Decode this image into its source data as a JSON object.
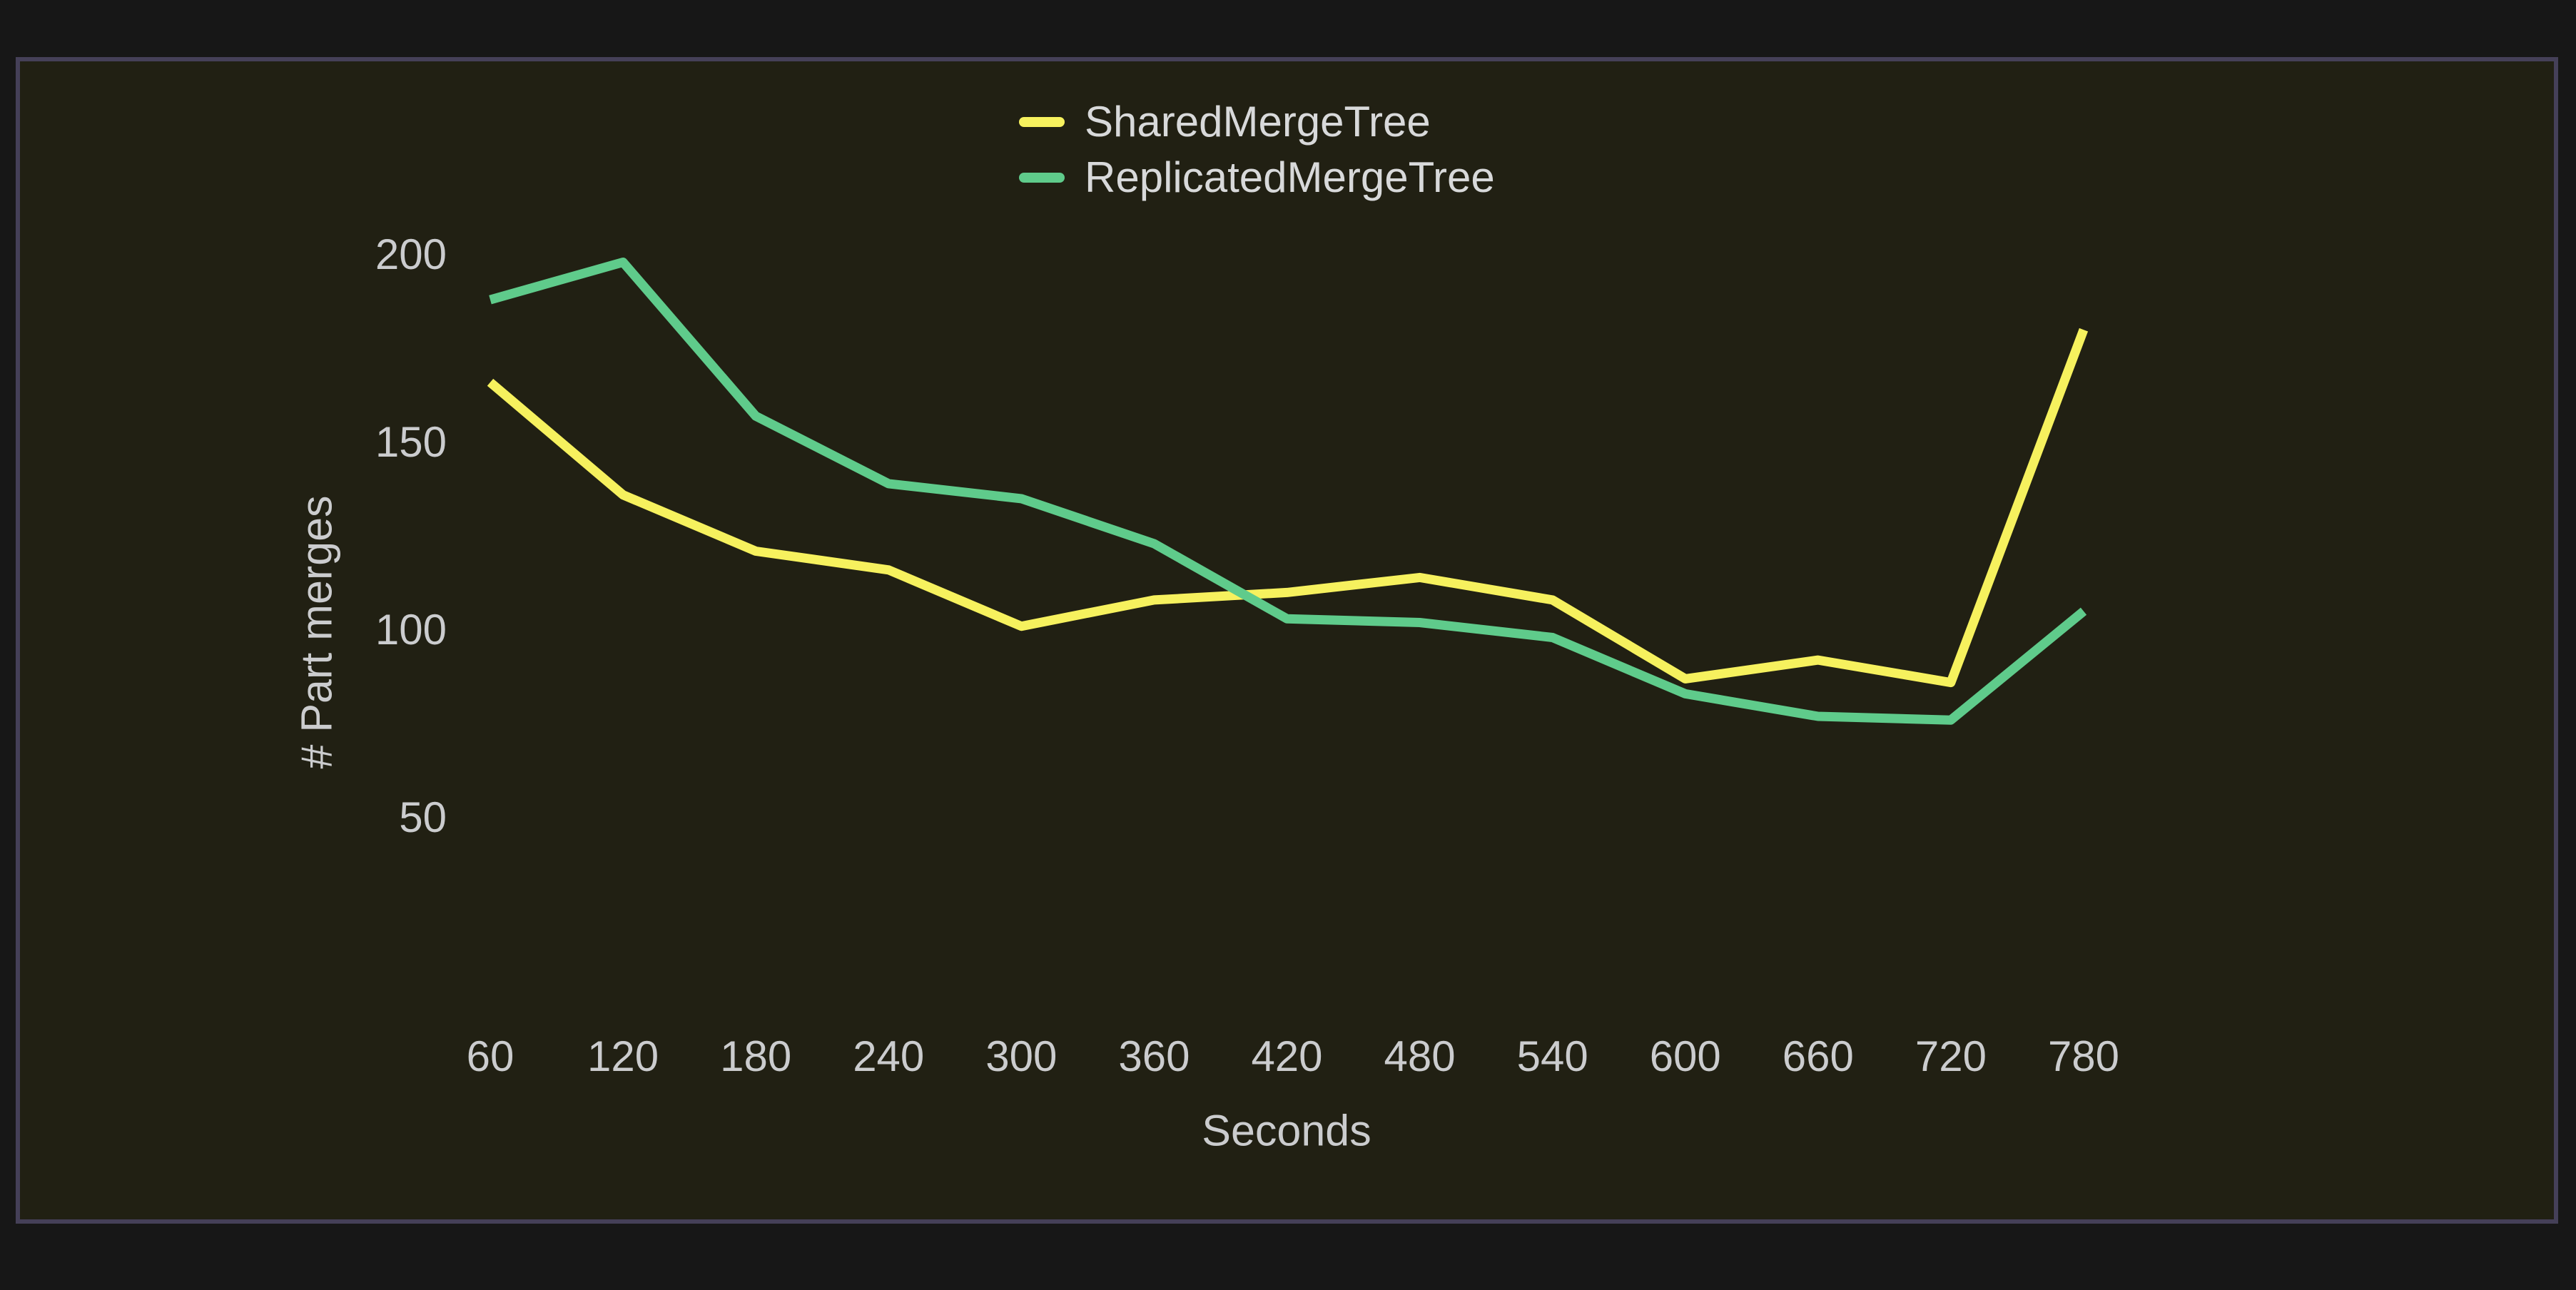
{
  "chart_data": {
    "type": "line",
    "title": "",
    "xlabel": "Seconds",
    "ylabel": "# Part merges",
    "x": [
      60,
      120,
      180,
      240,
      300,
      360,
      420,
      480,
      540,
      600,
      660,
      720,
      780
    ],
    "x_ticks": [
      60,
      120,
      180,
      240,
      300,
      360,
      420,
      480,
      540,
      600,
      660,
      720,
      780
    ],
    "y_ticks": [
      50,
      100,
      150,
      200
    ],
    "ylim": [
      50,
      200
    ],
    "grid": false,
    "legend_position": "top-center",
    "series": [
      {
        "name": "SharedMergeTree",
        "color": "#F6F15E",
        "values": [
          166,
          136,
          121,
          116,
          101,
          108,
          110,
          114,
          108,
          87,
          92,
          86,
          180
        ]
      },
      {
        "name": "ReplicatedMergeTree",
        "color": "#5FCB8B",
        "values": [
          188,
          198,
          157,
          139,
          135,
          123,
          103,
          102,
          98,
          83,
          77,
          76,
          105
        ]
      }
    ]
  },
  "colors": {
    "page_bg": "#171717",
    "panel_bg": "#212013",
    "panel_border": "#454058",
    "tick_text": "#CBCCCE",
    "legend_text": "#D8D9DA"
  }
}
